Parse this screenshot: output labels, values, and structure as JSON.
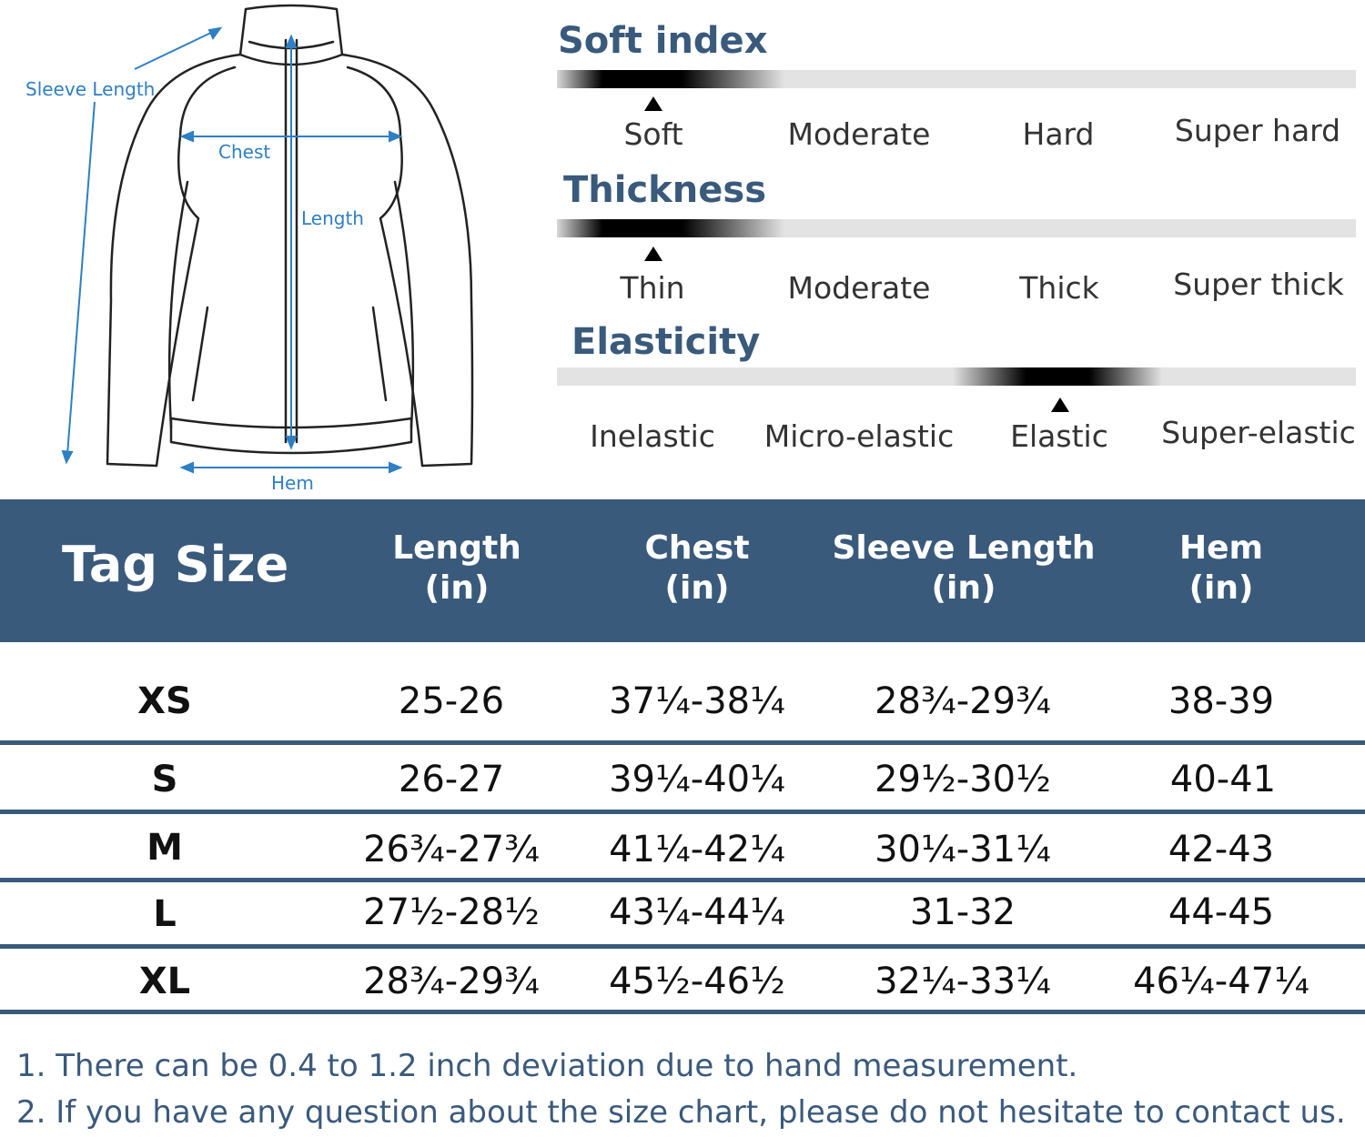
{
  "diagram": {
    "labels": {
      "sleeve_length": "Sleeve Length",
      "chest": "Chest",
      "length": "Length",
      "hem": "Hem"
    },
    "line_color": "#2f7fc3"
  },
  "attributes": [
    {
      "title": "Soft index",
      "options": [
        "Soft",
        "Moderate",
        "Hard",
        "Super hard"
      ],
      "selected": "Soft"
    },
    {
      "title": "Thickness",
      "options": [
        "Thin",
        "Moderate",
        "Thick",
        "Super thick"
      ],
      "selected": "Thin"
    },
    {
      "title": "Elasticity",
      "options": [
        "Inelastic",
        "Micro-elastic",
        "Elastic",
        "Super-elastic"
      ],
      "selected": "Elastic"
    }
  ],
  "table": {
    "header_color": "#3a5a7c",
    "tag_size_label": "Tag Size",
    "columns": [
      {
        "name": "Length",
        "unit": "(in)"
      },
      {
        "name": "Chest",
        "unit": "(in)"
      },
      {
        "name": "Sleeve Length",
        "unit": "(in)"
      },
      {
        "name": "Hem",
        "unit": "(in)"
      }
    ],
    "rows": [
      {
        "size": "XS",
        "values": [
          "25-26",
          "37¼-38¼",
          "28¾-29¾",
          "38-39"
        ]
      },
      {
        "size": "S",
        "values": [
          "26-27",
          "39¼-40¼",
          "29½-30½",
          "40-41"
        ]
      },
      {
        "size": "M",
        "values": [
          "26¾-27¾",
          "41¼-42¼",
          "30¼-31¼",
          "42-43"
        ]
      },
      {
        "size": "L",
        "values": [
          "27½-28½",
          "43¼-44¼",
          "31-32",
          "44-45"
        ]
      },
      {
        "size": "XL",
        "values": [
          "28¾-29¾",
          "45½-46½",
          "32¼-33¼",
          "46¼-47¼"
        ]
      }
    ]
  },
  "notes": [
    "1. There can be 0.4 to 1.2 inch deviation due to hand measurement.",
    "2. If you have any question about the size chart, please do not hesitate to contact us."
  ]
}
